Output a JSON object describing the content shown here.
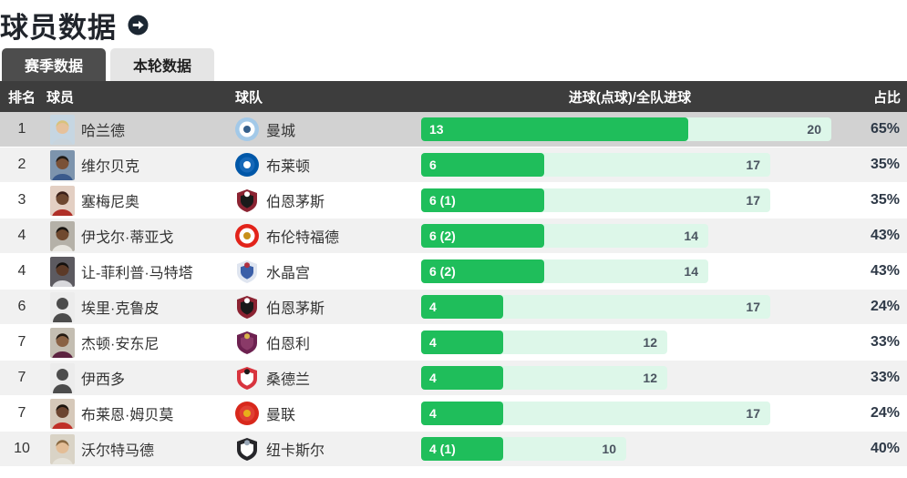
{
  "title": {
    "text": "球员数据",
    "arrow_icon": "arrow-right-circle"
  },
  "tabs": [
    {
      "label": "赛季数据",
      "active": true
    },
    {
      "label": "本轮数据",
      "active": false
    }
  ],
  "table": {
    "columns": {
      "rank": "排名",
      "player": "球员",
      "team": "球队",
      "goals": "进球(点球)/全队进球",
      "share": "占比"
    },
    "max_team_goals": 20,
    "rows": [
      {
        "rank": "1",
        "player": "哈兰德",
        "team": "曼城",
        "goals_display": "13",
        "goals": 13,
        "team_goals": 20,
        "share": "65%",
        "avatar": {
          "type": "photo",
          "bg": "#c6d6e2",
          "skin": "#e6c19b",
          "hair": "#d8c27c",
          "shirt": "#c9d4dc"
        },
        "badge": {
          "shape": "circle",
          "c1": "#a3c9e8",
          "c2": "#ffffff",
          "c3": "#35608c"
        }
      },
      {
        "rank": "2",
        "player": "维尔贝克",
        "team": "布莱顿",
        "goals_display": "6",
        "goals": 6,
        "team_goals": 17,
        "share": "35%",
        "avatar": {
          "type": "photo",
          "bg": "#7d94ad",
          "skin": "#7a5137",
          "hair": "#1f1a16",
          "shirt": "#3a5a8c"
        },
        "badge": {
          "shape": "circle",
          "c1": "#0057a8",
          "c2": "#1668b8",
          "c3": "#ffffff"
        }
      },
      {
        "rank": "3",
        "player": "塞梅尼奥",
        "team": "伯恩茅斯",
        "goals_display": "6 (1)",
        "goals": 6,
        "team_goals": 17,
        "share": "35%",
        "avatar": {
          "type": "photo",
          "bg": "#e3cfc3",
          "skin": "#6d4730",
          "hair": "#3a1f18",
          "shirt": "#b03028"
        },
        "badge": {
          "shape": "shield",
          "c1": "#8b2332",
          "c2": "#1a1a1a",
          "c3": "#ffffff"
        }
      },
      {
        "rank": "4",
        "player": "伊戈尔·蒂亚戈",
        "team": "布伦特福德",
        "goals_display": "6 (2)",
        "goals": 6,
        "team_goals": 14,
        "share": "43%",
        "avatar": {
          "type": "photo",
          "bg": "#b5b1a8",
          "skin": "#70492f",
          "hair": "#181410",
          "shirt": "#e8e6e0"
        },
        "badge": {
          "shape": "circle",
          "c1": "#e2231a",
          "c2": "#ffffff",
          "c3": "#c8901a"
        }
      },
      {
        "rank": "4",
        "player": "让-菲利普·马特塔",
        "team": "水晶宫",
        "goals_display": "6 (2)",
        "goals": 6,
        "team_goals": 14,
        "share": "43%",
        "avatar": {
          "type": "photo",
          "bg": "#5c5a60",
          "skin": "#5c3a27",
          "hair": "#14100d",
          "shirt": "#d8d8dc"
        },
        "badge": {
          "shape": "shield",
          "c1": "#dfe5f0",
          "c2": "#3b5fa8",
          "c3": "#b03040"
        }
      },
      {
        "rank": "6",
        "player": "埃里·克鲁皮",
        "team": "伯恩茅斯",
        "goals_display": "4",
        "goals": 4,
        "team_goals": 17,
        "share": "24%",
        "avatar": {
          "type": "silhouette"
        },
        "badge": {
          "shape": "shield",
          "c1": "#8b2332",
          "c2": "#1a1a1a",
          "c3": "#ffffff"
        }
      },
      {
        "rank": "7",
        "player": "杰顿·安东尼",
        "team": "伯恩利",
        "goals_display": "4",
        "goals": 4,
        "team_goals": 12,
        "share": "33%",
        "avatar": {
          "type": "photo",
          "bg": "#c4beb2",
          "skin": "#8a6244",
          "hair": "#241a12",
          "shirt": "#5c2340"
        },
        "badge": {
          "shape": "shield",
          "c1": "#6d2150",
          "c2": "#8a3a68",
          "c3": "#d9b34a"
        }
      },
      {
        "rank": "7",
        "player": "伊西多",
        "team": "桑德兰",
        "goals_display": "4",
        "goals": 4,
        "team_goals": 12,
        "share": "33%",
        "avatar": {
          "type": "silhouette"
        },
        "badge": {
          "shape": "shield",
          "c1": "#d8343e",
          "c2": "#ffffff",
          "c3": "#1a1a1a"
        }
      },
      {
        "rank": "7",
        "player": "布莱恩·姆贝莫",
        "team": "曼联",
        "goals_display": "4",
        "goals": 4,
        "team_goals": 17,
        "share": "24%",
        "avatar": {
          "type": "photo",
          "bg": "#d6c9ba",
          "skin": "#6d4530",
          "hair": "#1c140e",
          "shirt": "#c03028"
        },
        "badge": {
          "shape": "circle",
          "c1": "#d8281c",
          "c2": "#e04033",
          "c3": "#e8b01a"
        }
      },
      {
        "rank": "10",
        "player": "沃尔特马德",
        "team": "纽卡斯尔",
        "goals_display": "4 (1)",
        "goals": 4,
        "team_goals": 10,
        "share": "40%",
        "avatar": {
          "type": "photo",
          "bg": "#d9d3c6",
          "skin": "#e3bd96",
          "hair": "#8a6a42",
          "shirt": "#e6e3da"
        },
        "badge": {
          "shape": "shield",
          "c1": "#26262a",
          "c2": "#ffffff",
          "c3": "#9aa8b8"
        }
      }
    ]
  },
  "colors": {
    "bar_fill": "#1fbe5b",
    "bar_track": "#ddf7e9",
    "header_bg": "#3d3d3d",
    "tab_active_bg": "#4d4d4d",
    "tab_inactive_bg": "#e5e5e5",
    "row_highlight": "#d2d2d2",
    "row_alt": "#f1f1f1",
    "row_plain": "#ffffff",
    "title_icon_bg": "#1c2733",
    "silhouette_fg": "#4c4c4c",
    "silhouette_bg": "#ececec"
  }
}
